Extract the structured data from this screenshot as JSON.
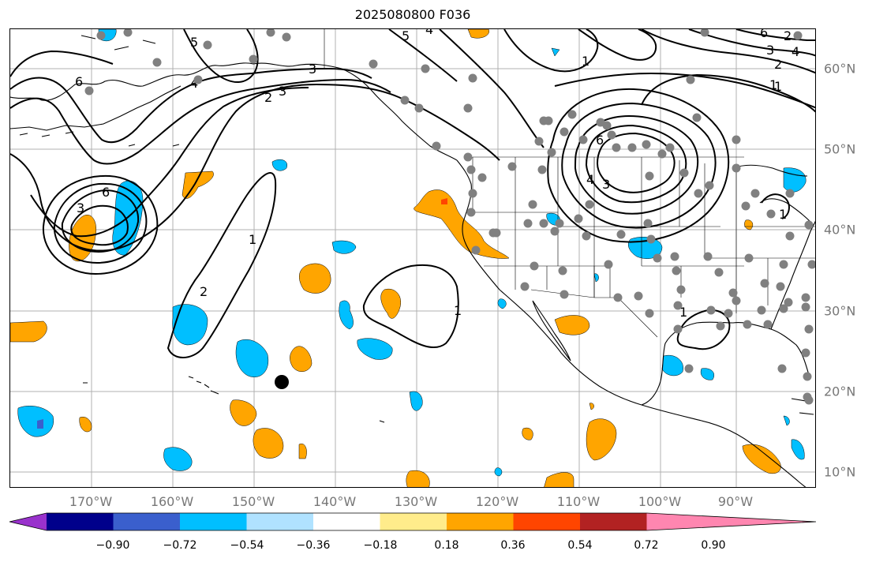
{
  "title": "2025080800 F036",
  "lon_labels": [
    "170°W",
    "160°W",
    "150°W",
    "140°W",
    "130°W",
    "120°W",
    "110°W",
    "100°W",
    "90°W"
  ],
  "lat_labels": [
    "60°N",
    "50°N",
    "40°N",
    "30°N",
    "20°N",
    "10°N"
  ],
  "colorbar": {
    "ticks": [
      "−0.90",
      "−0.72",
      "−0.54",
      "−0.36",
      "−0.18",
      "0.18",
      "0.36",
      "0.54",
      "0.72",
      "0.90"
    ],
    "colors": [
      "#9932cc",
      "#00008b",
      "#3a5fcd",
      "#00bfff",
      "#b0e2ff",
      "#ffffff",
      "#ffec8b",
      "#ffa500",
      "#ff4500",
      "#b22222",
      "#ff86b0"
    ]
  },
  "contour_labels": [
    "6",
    "5",
    "4",
    "3",
    "2",
    "1",
    "2",
    "3",
    "6",
    "5",
    "4",
    "3",
    "1",
    "2",
    "1",
    "6",
    "4",
    "3",
    "1",
    "6",
    "3",
    "4",
    "2",
    "1",
    "1",
    "1"
  ],
  "colors": {
    "positive": "#ffa500",
    "negative": "#00bfff",
    "strong_positive": "#ff4500",
    "strong_negative": "#3a5fcd",
    "station": "#808080",
    "grid": "#b0b0b0"
  }
}
